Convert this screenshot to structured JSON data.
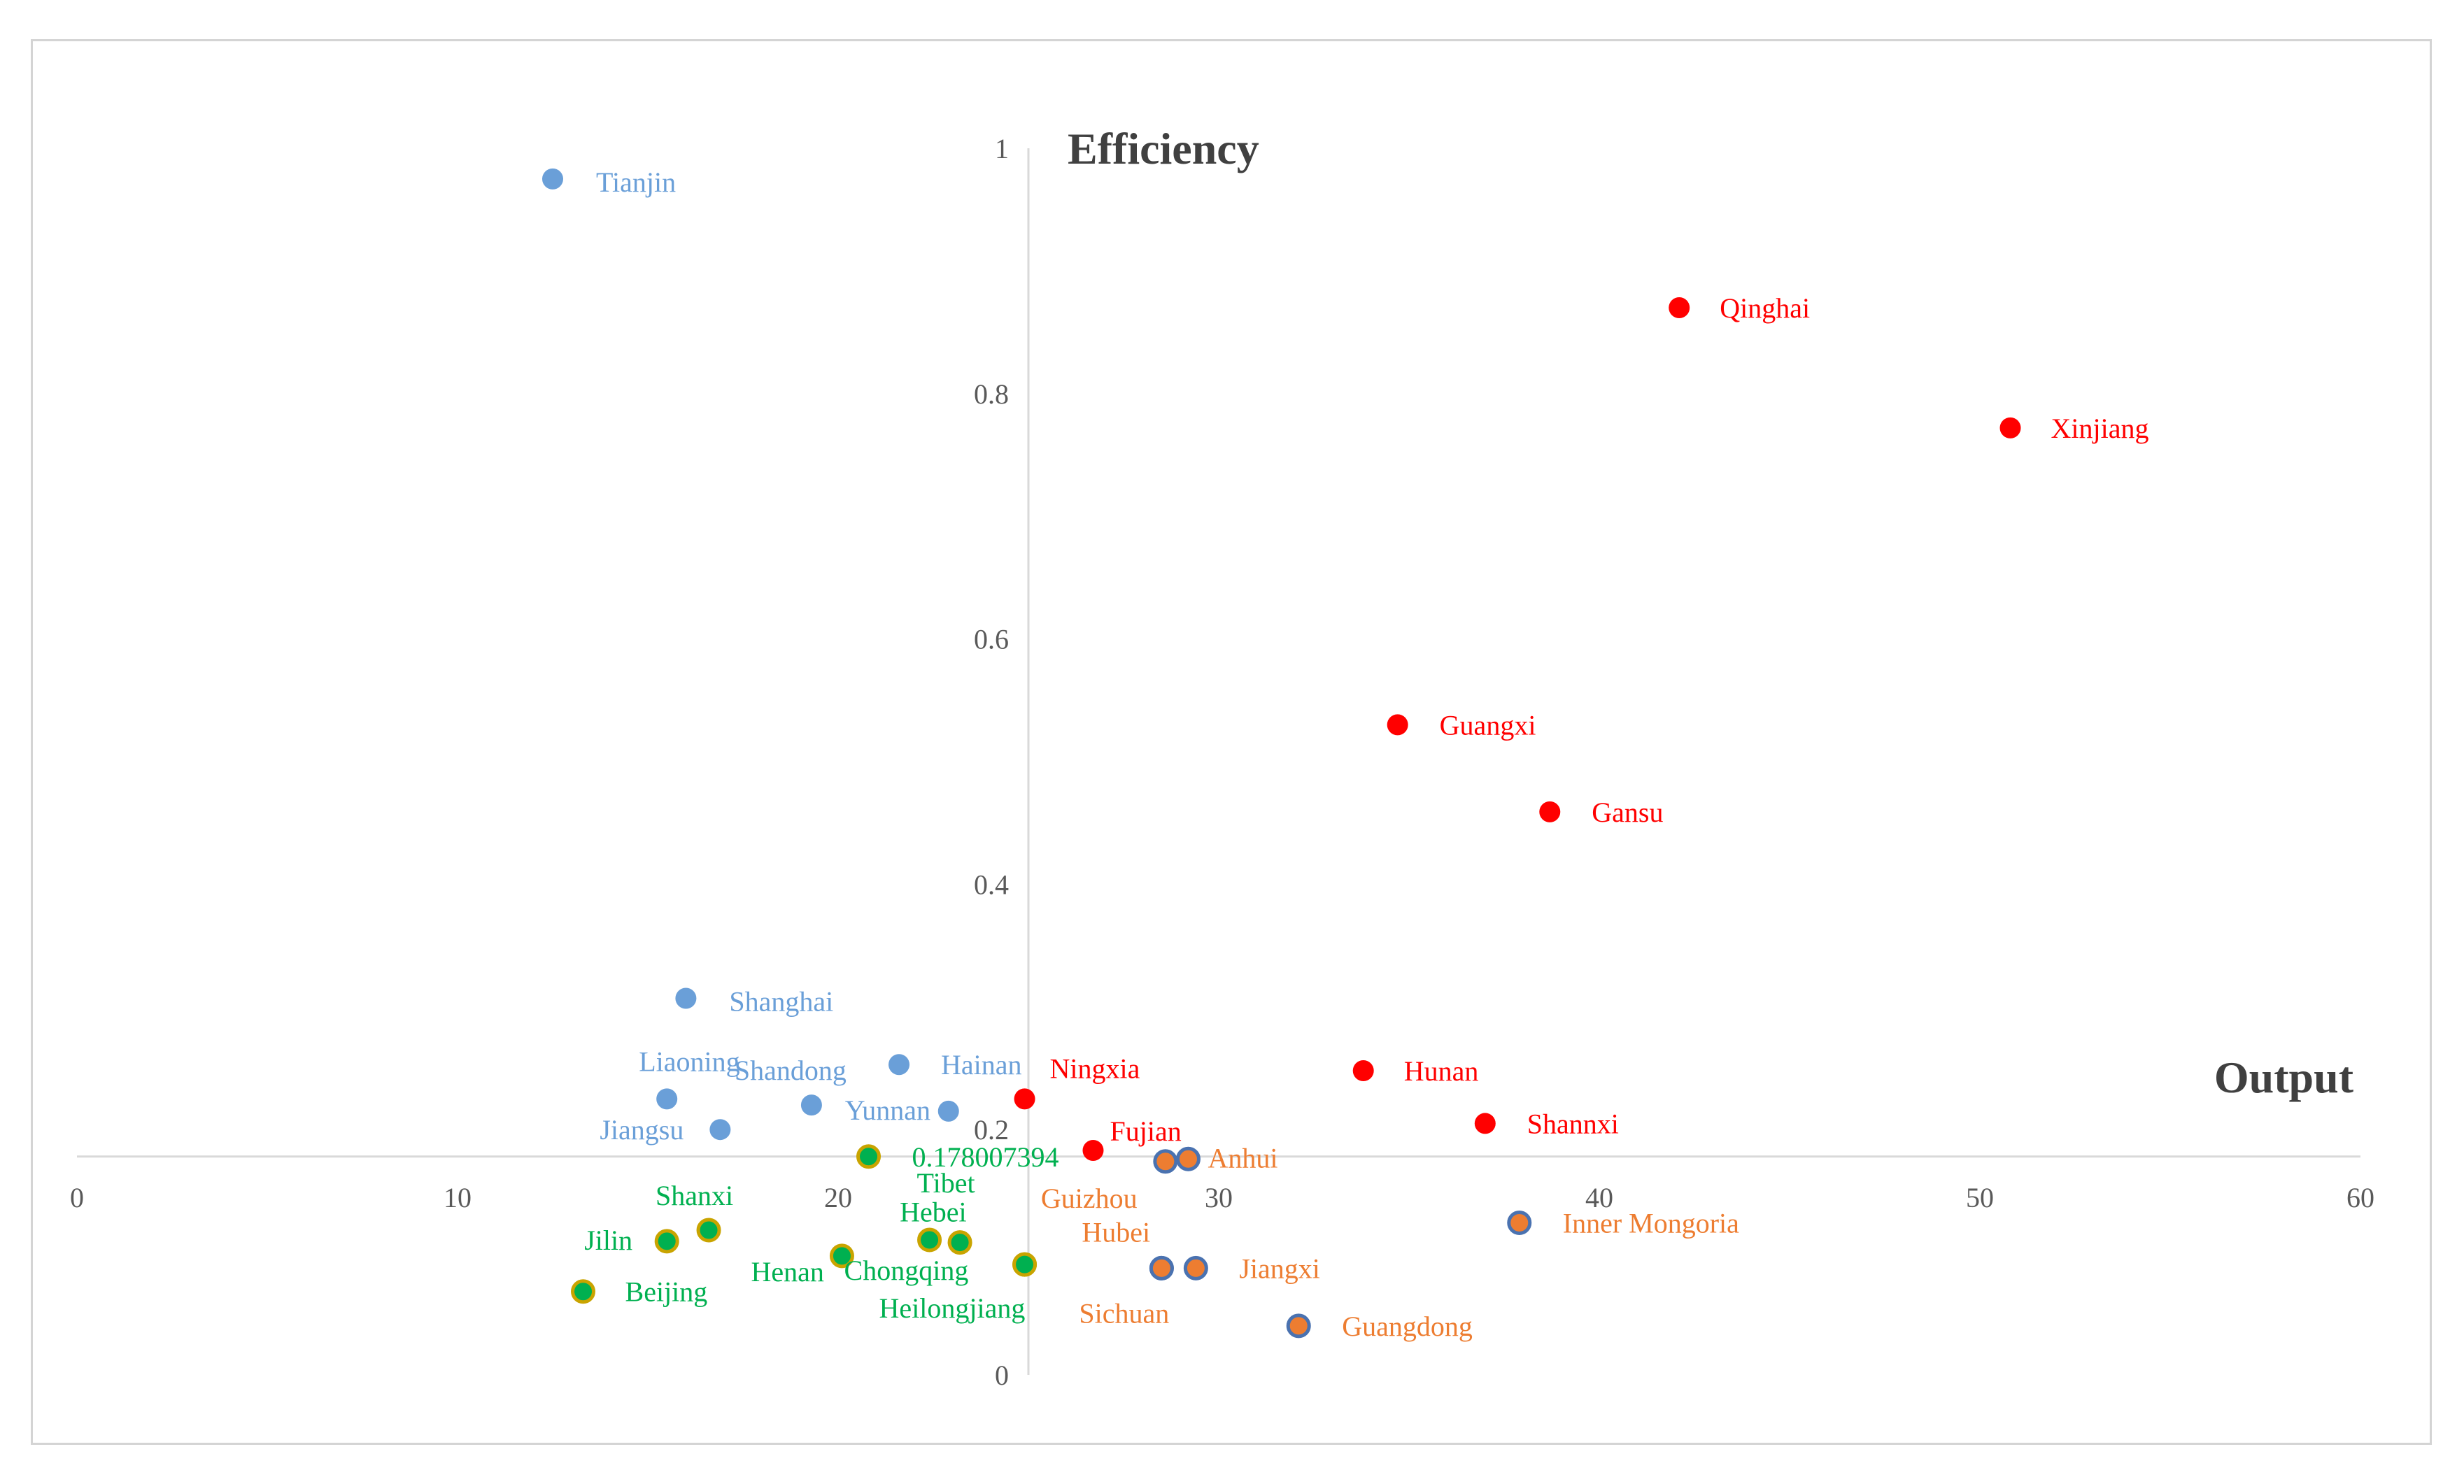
{
  "chart_data": {
    "type": "scatter",
    "title": "",
    "xlabel": "Output",
    "ylabel": "Efficiency",
    "xlim": [
      0,
      60
    ],
    "ylim": [
      0,
      1
    ],
    "x_ticks": [
      0,
      10,
      20,
      30,
      40,
      50,
      60
    ],
    "x_tick_labels": [
      "0",
      "10",
      "20",
      "30",
      "40",
      "50",
      "60"
    ],
    "y_ticks": [
      0,
      0.2,
      0.4,
      0.6,
      0.8,
      1
    ],
    "y_tick_labels": [
      "0",
      "0.2",
      "0.4",
      "0.6",
      "0.8",
      "1"
    ],
    "x_axis_crosses_at": 0.178,
    "y_axis_crosses_at": 25,
    "grid": false,
    "colors": {
      "blue": "#6a9fd8",
      "red": "#ff0000",
      "orange": "#ed7d31",
      "green": "#00b050",
      "gold_edge": "#c9a400",
      "blue_edge": "#4a72b0"
    },
    "annotations": [
      {
        "text": "0.178007394",
        "x": 20.8,
        "y": 0.178,
        "color": "#00b050"
      }
    ],
    "series": [
      {
        "name": "blue",
        "fill": "#6a9fd8",
        "edge": "#6a9fd8",
        "label_color": "#6a9fd8",
        "points": [
          {
            "name": "Tianjin",
            "x": 12.5,
            "y": 0.975
          },
          {
            "name": "Shanghai",
            "x": 16,
            "y": 0.307
          },
          {
            "name": "Hainan",
            "x": 21.6,
            "y": 0.253
          },
          {
            "name": "Liaoning",
            "x": 15.5,
            "y": 0.225
          },
          {
            "name": "Shandong",
            "x": 19.3,
            "y": 0.22
          },
          {
            "name": "Yunnan",
            "x": 22.9,
            "y": 0.215
          },
          {
            "name": "Jiangsu",
            "x": 16.9,
            "y": 0.2
          }
        ]
      },
      {
        "name": "red",
        "fill": "#ff0000",
        "edge": "#ff0000",
        "label_color": "#ff0000",
        "points": [
          {
            "name": "Qinghai",
            "x": 42.1,
            "y": 0.87
          },
          {
            "name": "Xinjiang",
            "x": 50.8,
            "y": 0.772
          },
          {
            "name": "Guangxi",
            "x": 34.7,
            "y": 0.53
          },
          {
            "name": "Gansu",
            "x": 38.7,
            "y": 0.459
          },
          {
            "name": "Hunan",
            "x": 33.8,
            "y": 0.248
          },
          {
            "name": "Ningxia",
            "x": 24.9,
            "y": 0.225
          },
          {
            "name": "Shannxi",
            "x": 37,
            "y": 0.205
          },
          {
            "name": "Fujian",
            "x": 26.7,
            "y": 0.183
          }
        ]
      },
      {
        "name": "orange",
        "fill": "#ed7d31",
        "edge": "#4a72b0",
        "label_color": "#ed7d31",
        "points": [
          {
            "name": "Anhui",
            "x": 29.2,
            "y": 0.176
          },
          {
            "name": "Guizhou",
            "x": 28.6,
            "y": 0.174
          },
          {
            "name": "Inner Mongoria",
            "x": 37.9,
            "y": 0.124
          },
          {
            "name": "Hubei",
            "x": 28.5,
            "y": 0.087
          },
          {
            "name": "Jiangxi",
            "x": 29.4,
            "y": 0.087
          },
          {
            "name": "Sichuan",
            "x": 28.5,
            "y": 0.087
          },
          {
            "name": "Guangdong",
            "x": 32.1,
            "y": 0.04
          }
        ]
      },
      {
        "name": "green",
        "fill": "#00b050",
        "edge": "#c9a400",
        "label_color": "#00b050",
        "points": [
          {
            "name": "0.178007394",
            "x": 20.8,
            "y": 0.178
          },
          {
            "name": "Shanxi",
            "x": 16.6,
            "y": 0.118
          },
          {
            "name": "Tibet",
            "x": 22.4,
            "y": 0.11
          },
          {
            "name": "Hebei",
            "x": 23.2,
            "y": 0.108
          },
          {
            "name": "Jilin",
            "x": 15.5,
            "y": 0.109
          },
          {
            "name": "Henan",
            "x": 20.1,
            "y": 0.097
          },
          {
            "name": "Chongqing",
            "x": 24.9,
            "y": 0.09
          },
          {
            "name": "Heilongjiang",
            "x": 24.9,
            "y": 0.09
          },
          {
            "name": "Beijing",
            "x": 13.3,
            "y": 0.068
          }
        ]
      }
    ]
  }
}
